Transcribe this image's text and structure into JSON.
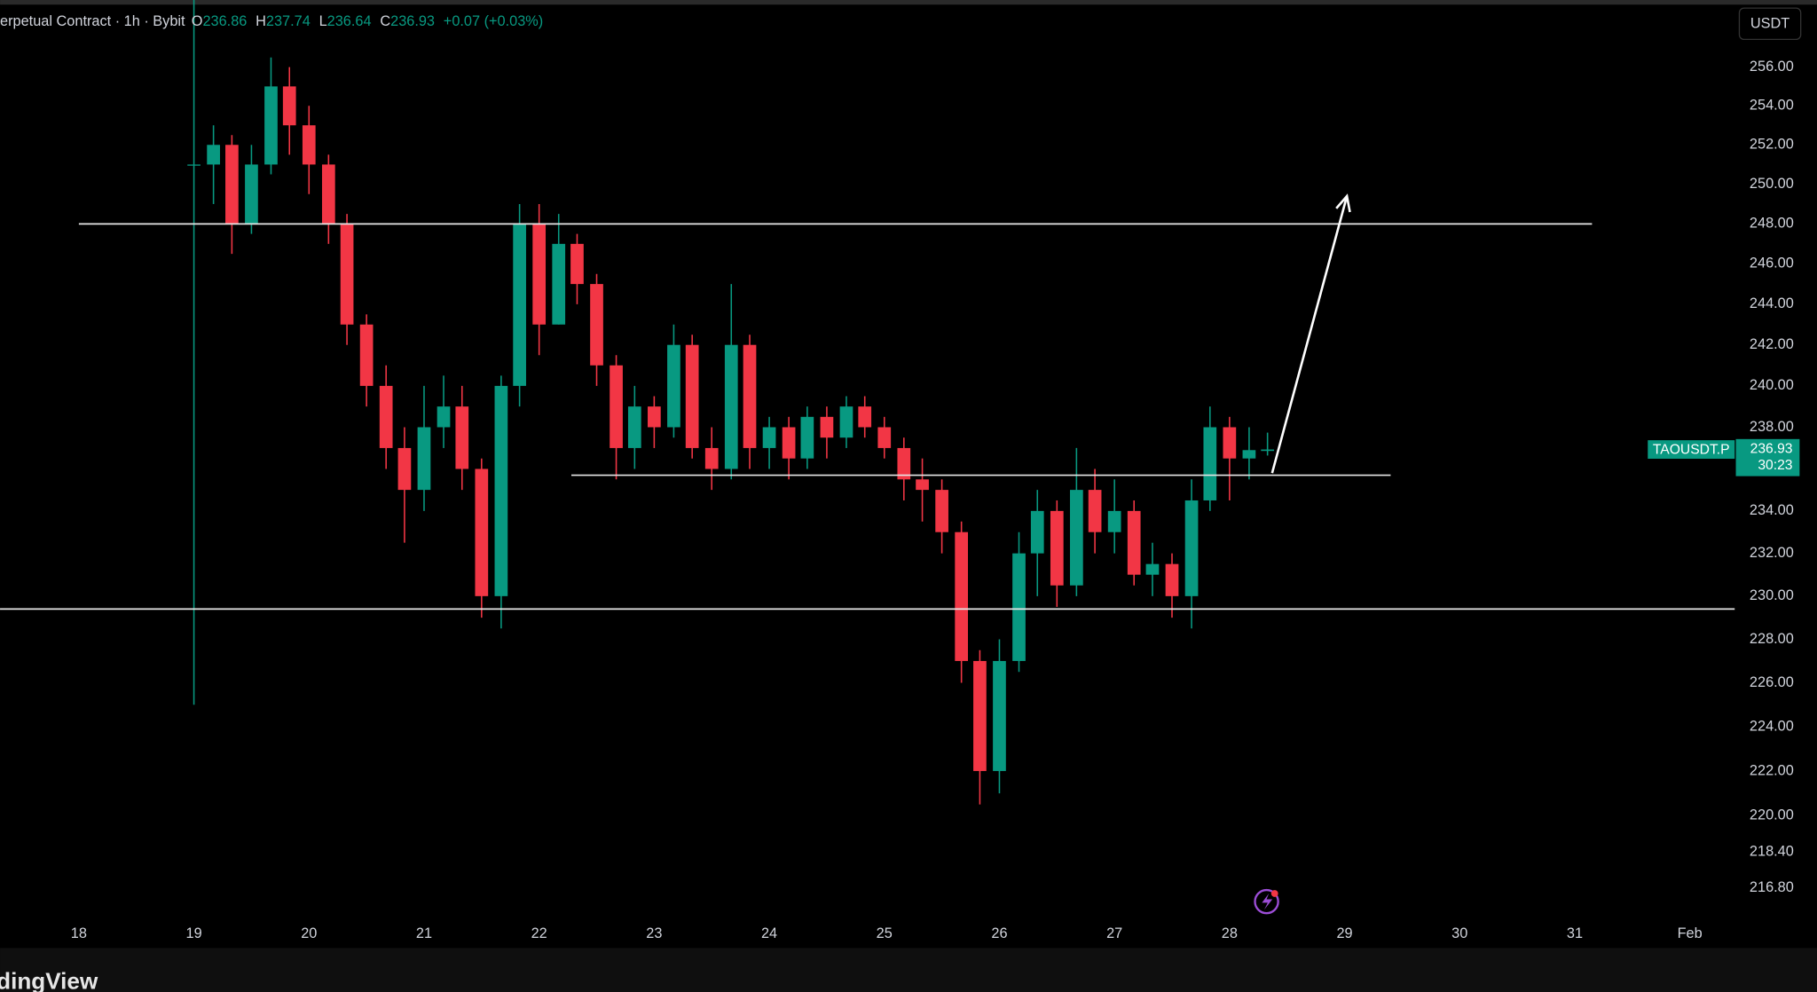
{
  "header": {
    "title": "erpetual Contract · 1h · Bybit",
    "ohlc_labels": [
      "O",
      "H",
      "L",
      "C"
    ],
    "change": "+0.07 (+0.03%)",
    "currency_button": "USDT",
    "watermark": "dingView"
  },
  "chart_data": {
    "type": "candlestick",
    "log_scale": true,
    "symbol_label": "TAOUSDT.P",
    "countdown": "30:23",
    "up_color": "#089981",
    "down_color": "#f23645",
    "x": [
      19,
      19.17,
      19.33,
      19.5,
      19.67,
      19.83,
      20,
      20.17,
      20.33,
      20.5,
      20.67,
      20.83,
      21,
      21.17,
      21.33,
      21.5,
      21.67,
      21.83,
      22,
      22.17,
      22.33,
      22.5,
      22.67,
      22.83,
      23,
      23.17,
      23.33,
      23.5,
      23.67,
      23.83,
      24,
      24.17,
      24.33,
      24.5,
      24.67,
      24.83,
      25,
      25.17,
      25.33,
      25.5,
      25.67,
      25.83,
      26,
      26.17,
      26.33,
      26.5,
      26.67,
      26.83,
      27,
      27.17,
      27.33,
      27.5,
      27.67,
      27.83,
      28,
      28.17,
      28.33
    ],
    "open": [
      251,
      251,
      252,
      248,
      251,
      255,
      253,
      251,
      248,
      243,
      240,
      237,
      235,
      238,
      239,
      236,
      230,
      240,
      248,
      243,
      247,
      245,
      241,
      237,
      239,
      238,
      242,
      237,
      236,
      242,
      237,
      238,
      236.5,
      238.5,
      237.5,
      239,
      238,
      237,
      235.5,
      235,
      233,
      227,
      222,
      227,
      232,
      234,
      230.5,
      235,
      233,
      234,
      231,
      231.5,
      230,
      234.5,
      238,
      236.5,
      236.86
    ],
    "high": [
      259.5,
      253,
      252.5,
      252,
      256.5,
      256,
      254,
      251.5,
      248.5,
      243.5,
      241,
      238,
      240,
      240.5,
      240,
      236.5,
      240.5,
      249,
      249,
      248.5,
      247.5,
      245.5,
      241.5,
      240,
      239.5,
      243,
      242.5,
      238,
      245,
      242.5,
      238.5,
      238.5,
      239,
      239,
      239.5,
      239.5,
      238.5,
      237.5,
      236.5,
      235.5,
      233.5,
      227.5,
      228,
      233,
      235,
      234.5,
      237,
      236,
      235.5,
      234.5,
      232.5,
      232,
      235.5,
      239,
      238.5,
      238,
      237.74
    ],
    "low": [
      225,
      249,
      246.5,
      247.5,
      250.5,
      251.5,
      249.5,
      247,
      242,
      239,
      236,
      232.5,
      234,
      237,
      235,
      229,
      228.5,
      239,
      241.5,
      243,
      244,
      240,
      235.5,
      236,
      237,
      237.5,
      236.5,
      235,
      235.5,
      236,
      236,
      235.5,
      236,
      236.5,
      237,
      237.5,
      236.5,
      234.5,
      233.5,
      232,
      226,
      220.5,
      221,
      226.5,
      230,
      229.5,
      230,
      232,
      232,
      230.5,
      230,
      229,
      228.5,
      234,
      234.5,
      235.5,
      236.64
    ],
    "close": [
      251,
      252,
      248,
      251,
      255,
      253,
      251,
      248,
      243,
      240,
      237,
      235,
      238,
      239,
      236,
      230,
      240,
      248,
      243,
      247,
      245,
      241,
      237,
      239,
      238,
      242,
      237,
      236,
      242,
      237,
      238,
      236.5,
      238.5,
      237.5,
      239,
      238,
      237,
      235.5,
      235,
      233,
      227,
      222,
      227,
      232,
      234,
      230.5,
      235,
      233,
      234,
      231,
      231.5,
      230,
      234.5,
      238,
      236.5,
      236.9,
      236.93
    ],
    "xlim": [
      17.315,
      32.39
    ],
    "xticks": [
      18,
      19,
      20,
      21,
      22,
      23,
      24,
      25,
      26,
      27,
      28,
      29,
      30,
      31,
      {
        "value": 32,
        "label": "Feb"
      }
    ],
    "ylim": [
      215.6,
      259.5
    ],
    "yticks": [
      {
        "value": 256,
        "label": "256.00"
      },
      {
        "value": 254,
        "label": "254.00"
      },
      {
        "value": 252,
        "label": "252.00"
      },
      {
        "value": 250,
        "label": "250.00"
      },
      {
        "value": 248,
        "label": "248.00"
      },
      {
        "value": 246,
        "label": "246.00"
      },
      {
        "value": 244,
        "label": "244.00"
      },
      {
        "value": 242,
        "label": "242.00"
      },
      {
        "value": 240,
        "label": "240.00"
      },
      {
        "value": 238,
        "label": "238.00"
      },
      {
        "value": 234,
        "label": "234.00"
      },
      {
        "value": 232,
        "label": "232.00"
      },
      {
        "value": 230,
        "label": "230.00"
      },
      {
        "value": 228,
        "label": "228.00"
      },
      {
        "value": 226,
        "label": "226.00"
      },
      {
        "value": 224,
        "label": "224.00"
      },
      {
        "value": 222,
        "label": "222.00"
      },
      {
        "value": 220,
        "label": "220.00"
      },
      {
        "value": 218.4,
        "label": "218.40"
      },
      {
        "value": 216.8,
        "label": "216.80"
      }
    ],
    "levels": [
      {
        "price": 248,
        "x": [
          18,
          31.15
        ]
      },
      {
        "price": 235.7,
        "x": [
          22.28,
          29.4
        ]
      },
      {
        "price": 229.4,
        "x": [
          17.315,
          32.39
        ]
      }
    ],
    "arrow": {
      "x": [
        28.37,
        29.02
      ],
      "y": [
        235.8,
        249.4
      ]
    }
  }
}
